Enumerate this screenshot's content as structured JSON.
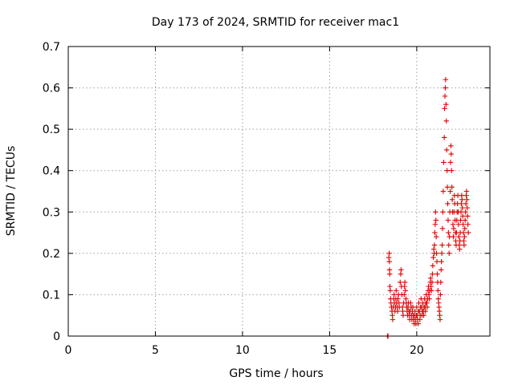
{
  "chart_data": {
    "type": "scatter",
    "title": "Day 173 of 2024, SRMTID for receiver mac1",
    "xlabel": "GPS time / hours",
    "ylabel": "SRMTID / TECUs",
    "xlim": [
      0,
      24.2
    ],
    "ylim": [
      0,
      0.7
    ],
    "xticks": [
      0,
      5,
      10,
      15,
      20
    ],
    "yticks": [
      0,
      0.1,
      0.2,
      0.3,
      0.4,
      0.5,
      0.6,
      0.7
    ],
    "grid": true,
    "marker": "+",
    "color": "#e00000",
    "series": [
      {
        "name": "mac1",
        "points": [
          [
            18.32,
            0.0
          ],
          [
            18.35,
            0.0
          ],
          [
            18.4,
            0.19
          ],
          [
            18.42,
            0.2
          ],
          [
            18.43,
            0.18
          ],
          [
            18.44,
            0.16
          ],
          [
            18.45,
            0.15
          ],
          [
            18.46,
            0.12
          ],
          [
            18.48,
            0.11
          ],
          [
            18.5,
            0.09
          ],
          [
            18.52,
            0.08
          ],
          [
            18.55,
            0.07
          ],
          [
            18.58,
            0.06
          ],
          [
            18.6,
            0.05
          ],
          [
            18.62,
            0.04
          ],
          [
            18.65,
            0.07
          ],
          [
            18.68,
            0.09
          ],
          [
            18.7,
            0.1
          ],
          [
            18.72,
            0.08
          ],
          [
            18.75,
            0.06
          ],
          [
            18.78,
            0.07
          ],
          [
            18.8,
            0.09
          ],
          [
            18.82,
            0.11
          ],
          [
            18.85,
            0.08
          ],
          [
            18.88,
            0.07
          ],
          [
            18.9,
            0.06
          ],
          [
            18.92,
            0.09
          ],
          [
            18.95,
            0.1
          ],
          [
            18.98,
            0.08
          ],
          [
            19.0,
            0.07
          ],
          [
            19.05,
            0.13
          ],
          [
            19.08,
            0.15
          ],
          [
            19.1,
            0.16
          ],
          [
            19.12,
            0.12
          ],
          [
            19.15,
            0.1
          ],
          [
            19.18,
            0.07
          ],
          [
            19.2,
            0.06
          ],
          [
            19.22,
            0.05
          ],
          [
            19.25,
            0.08
          ],
          [
            19.28,
            0.1
          ],
          [
            19.3,
            0.12
          ],
          [
            19.32,
            0.13
          ],
          [
            19.35,
            0.11
          ],
          [
            19.38,
            0.09
          ],
          [
            19.4,
            0.08
          ],
          [
            19.42,
            0.07
          ],
          [
            19.45,
            0.06
          ],
          [
            19.48,
            0.05
          ],
          [
            19.5,
            0.07
          ],
          [
            19.52,
            0.08
          ],
          [
            19.55,
            0.06
          ],
          [
            19.58,
            0.05
          ],
          [
            19.6,
            0.04
          ],
          [
            19.62,
            0.06
          ],
          [
            19.65,
            0.08
          ],
          [
            19.68,
            0.07
          ],
          [
            19.7,
            0.05
          ],
          [
            19.72,
            0.04
          ],
          [
            19.75,
            0.06
          ],
          [
            19.78,
            0.07
          ],
          [
            19.8,
            0.05
          ],
          [
            19.82,
            0.04
          ],
          [
            19.85,
            0.03
          ],
          [
            19.88,
            0.05
          ],
          [
            19.9,
            0.06
          ],
          [
            19.92,
            0.04
          ],
          [
            19.95,
            0.03
          ],
          [
            19.98,
            0.05
          ],
          [
            20.0,
            0.07
          ],
          [
            20.02,
            0.05
          ],
          [
            20.05,
            0.04
          ],
          [
            20.08,
            0.03
          ],
          [
            20.1,
            0.06
          ],
          [
            20.12,
            0.08
          ],
          [
            20.15,
            0.06
          ],
          [
            20.18,
            0.04
          ],
          [
            20.2,
            0.05
          ],
          [
            20.22,
            0.07
          ],
          [
            20.25,
            0.09
          ],
          [
            20.28,
            0.07
          ],
          [
            20.3,
            0.05
          ],
          [
            20.32,
            0.06
          ],
          [
            20.35,
            0.08
          ],
          [
            20.38,
            0.06
          ],
          [
            20.4,
            0.05
          ],
          [
            20.42,
            0.07
          ],
          [
            20.45,
            0.09
          ],
          [
            20.48,
            0.07
          ],
          [
            20.5,
            0.06
          ],
          [
            20.52,
            0.08
          ],
          [
            20.55,
            0.1
          ],
          [
            20.58,
            0.08
          ],
          [
            20.6,
            0.07
          ],
          [
            20.62,
            0.09
          ],
          [
            20.65,
            0.11
          ],
          [
            20.68,
            0.12
          ],
          [
            20.7,
            0.1
          ],
          [
            20.72,
            0.09
          ],
          [
            20.75,
            0.11
          ],
          [
            20.78,
            0.13
          ],
          [
            20.8,
            0.14
          ],
          [
            20.82,
            0.12
          ],
          [
            20.85,
            0.11
          ],
          [
            20.88,
            0.13
          ],
          [
            20.9,
            0.15
          ],
          [
            20.92,
            0.17
          ],
          [
            20.95,
            0.19
          ],
          [
            20.98,
            0.21
          ],
          [
            21.0,
            0.2
          ],
          [
            21.02,
            0.22
          ],
          [
            21.04,
            0.25
          ],
          [
            21.06,
            0.27
          ],
          [
            21.08,
            0.3
          ],
          [
            21.1,
            0.28
          ],
          [
            21.12,
            0.24
          ],
          [
            21.14,
            0.2
          ],
          [
            21.16,
            0.18
          ],
          [
            21.18,
            0.15
          ],
          [
            21.2,
            0.13
          ],
          [
            21.22,
            0.11
          ],
          [
            21.24,
            0.09
          ],
          [
            21.26,
            0.08
          ],
          [
            21.28,
            0.07
          ],
          [
            21.3,
            0.06
          ],
          [
            21.32,
            0.05
          ],
          [
            21.34,
            0.04
          ],
          [
            21.36,
            0.1
          ],
          [
            21.38,
            0.13
          ],
          [
            21.4,
            0.16
          ],
          [
            21.42,
            0.18
          ],
          [
            21.44,
            0.2
          ],
          [
            21.46,
            0.22
          ],
          [
            21.48,
            0.26
          ],
          [
            21.5,
            0.3
          ],
          [
            21.52,
            0.35
          ],
          [
            21.55,
            0.42
          ],
          [
            21.58,
            0.48
          ],
          [
            21.6,
            0.55
          ],
          [
            21.62,
            0.58
          ],
          [
            21.64,
            0.6
          ],
          [
            21.66,
            0.62
          ],
          [
            21.68,
            0.56
          ],
          [
            21.7,
            0.52
          ],
          [
            21.72,
            0.45
          ],
          [
            21.74,
            0.4
          ],
          [
            21.76,
            0.36
          ],
          [
            21.78,
            0.32
          ],
          [
            21.8,
            0.28
          ],
          [
            21.82,
            0.25
          ],
          [
            21.84,
            0.22
          ],
          [
            21.86,
            0.2
          ],
          [
            21.88,
            0.24
          ],
          [
            21.9,
            0.3
          ],
          [
            21.92,
            0.35
          ],
          [
            21.94,
            0.42
          ],
          [
            21.96,
            0.46
          ],
          [
            21.98,
            0.44
          ],
          [
            22.0,
            0.4
          ],
          [
            22.02,
            0.36
          ],
          [
            22.04,
            0.33
          ],
          [
            22.06,
            0.3
          ],
          [
            22.08,
            0.27
          ],
          [
            22.1,
            0.24
          ],
          [
            22.12,
            0.26
          ],
          [
            22.14,
            0.3
          ],
          [
            22.16,
            0.34
          ],
          [
            22.18,
            0.32
          ],
          [
            22.2,
            0.28
          ],
          [
            22.22,
            0.25
          ],
          [
            22.24,
            0.23
          ],
          [
            22.26,
            0.22
          ],
          [
            22.28,
            0.25
          ],
          [
            22.3,
            0.28
          ],
          [
            22.32,
            0.3
          ],
          [
            22.34,
            0.32
          ],
          [
            22.36,
            0.34
          ],
          [
            22.38,
            0.3
          ],
          [
            22.4,
            0.27
          ],
          [
            22.42,
            0.24
          ],
          [
            22.44,
            0.22
          ],
          [
            22.46,
            0.21
          ],
          [
            22.48,
            0.23
          ],
          [
            22.5,
            0.25
          ],
          [
            22.52,
            0.28
          ],
          [
            22.54,
            0.3
          ],
          [
            22.56,
            0.32
          ],
          [
            22.58,
            0.34
          ],
          [
            22.6,
            0.33
          ],
          [
            22.62,
            0.31
          ],
          [
            22.64,
            0.29
          ],
          [
            22.66,
            0.27
          ],
          [
            22.68,
            0.25
          ],
          [
            22.7,
            0.23
          ],
          [
            22.72,
            0.22
          ],
          [
            22.74,
            0.24
          ],
          [
            22.76,
            0.26
          ],
          [
            22.78,
            0.28
          ],
          [
            22.8,
            0.3
          ],
          [
            22.82,
            0.32
          ],
          [
            22.84,
            0.34
          ],
          [
            22.86,
            0.35
          ],
          [
            22.88,
            0.33
          ],
          [
            22.9,
            0.31
          ],
          [
            22.92,
            0.29
          ],
          [
            22.94,
            0.27
          ],
          [
            22.96,
            0.25
          ]
        ]
      }
    ]
  }
}
